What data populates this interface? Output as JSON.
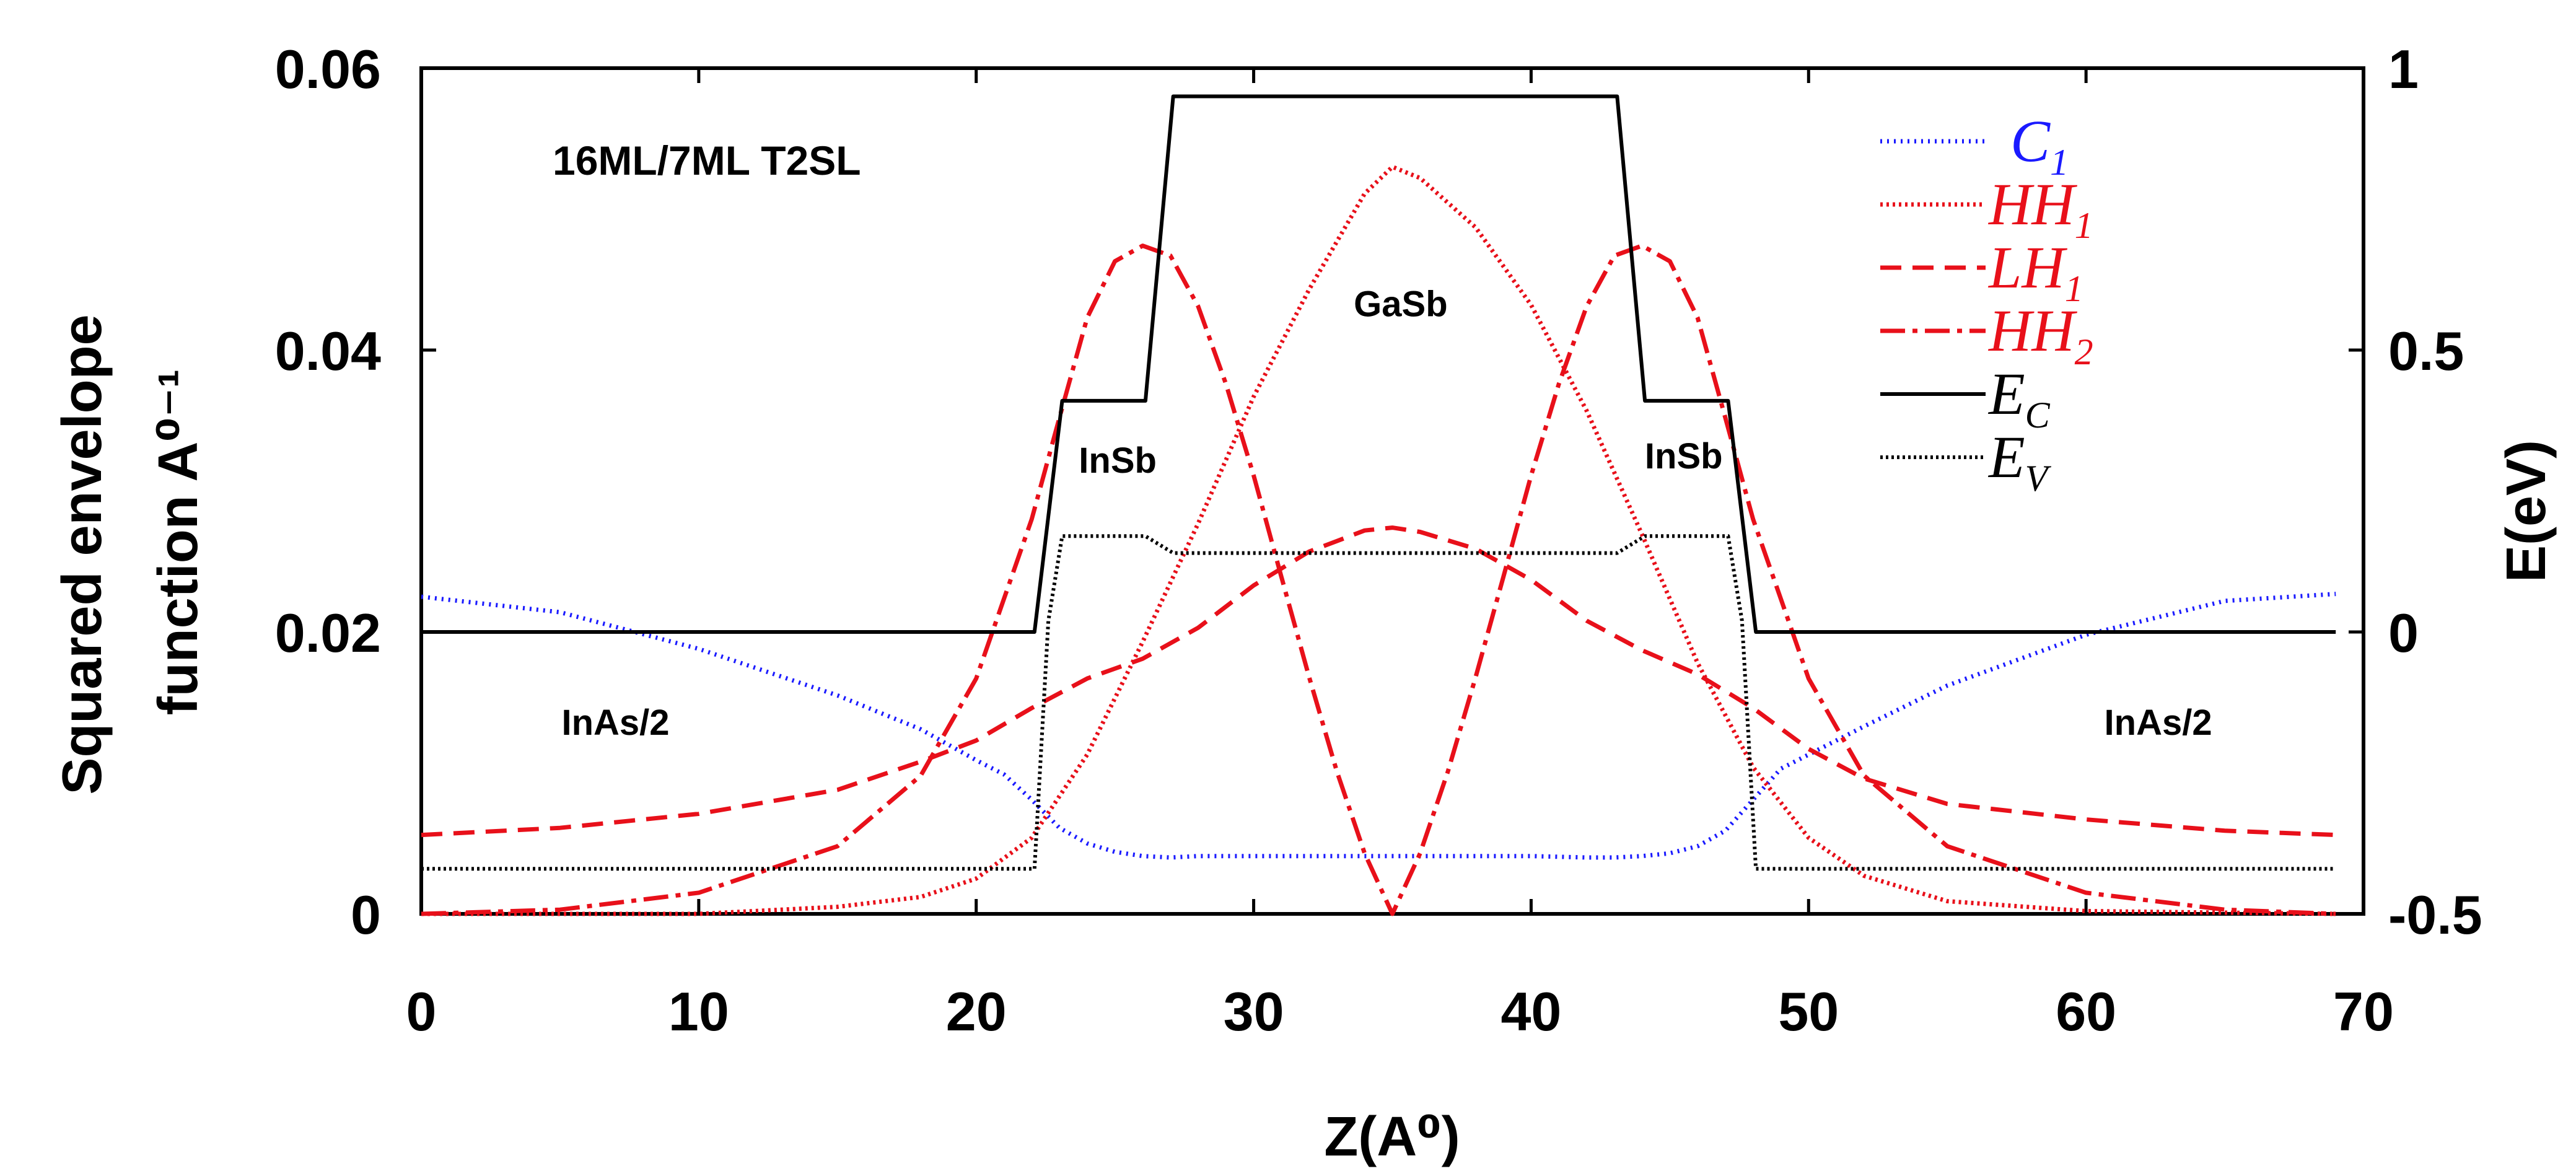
{
  "chart_data": {
    "type": "line",
    "title": "16ML/7ML T2SL",
    "xlabel": "Z(A⁰)",
    "ylabel_left_line1": "Squared envelope",
    "ylabel_left_line2": "function A⁰⁻¹",
    "ylabel_right": "E(eV)",
    "xlim": [
      0,
      70
    ],
    "ylim_left": [
      0,
      0.06
    ],
    "ylim_right": [
      -0.5,
      1.0
    ],
    "xticks": [
      0,
      10,
      20,
      30,
      40,
      50,
      60,
      70
    ],
    "xtick_labels": [
      "0",
      "10",
      "20",
      "30",
      "40",
      "50",
      "60",
      "70"
    ],
    "yticks_left": [
      0,
      0.02,
      0.04,
      0.06
    ],
    "ytick_labels_left": [
      "0",
      "0.02",
      "0.04",
      "0.06"
    ],
    "yticks_right": [
      -0.5,
      0,
      0.5,
      1.0
    ],
    "ytick_labels_right": [
      "-0.5",
      "0",
      "0.5",
      "1"
    ],
    "annotations": [
      {
        "text": "InAs/2",
        "x": 7,
        "y": 0.0127
      },
      {
        "text": "InSb",
        "x": 25.1,
        "y": 0.0313
      },
      {
        "text": "GaSb",
        "x": 35.3,
        "y": 0.0424
      },
      {
        "text": "InSb",
        "x": 45.5,
        "y": 0.0316
      },
      {
        "text": "InAs/2",
        "x": 62.6,
        "y": 0.0127
      }
    ],
    "series": [
      {
        "name": "C1",
        "label_main": "C",
        "label_sub": "1",
        "axis": "left",
        "color": "#1a1aff",
        "dash": "3,8",
        "x": [
          0,
          5,
          10,
          15,
          18,
          20,
          21,
          22,
          23,
          24,
          25,
          26,
          27,
          28,
          30,
          35,
          40,
          42,
          43,
          44,
          45,
          46,
          47,
          48,
          49,
          50,
          52,
          55,
          60,
          65,
          69
        ],
        "y": [
          0.0225,
          0.0214,
          0.0188,
          0.0155,
          0.0131,
          0.0109,
          0.0099,
          0.0081,
          0.0061,
          0.005,
          0.0044,
          0.0041,
          0.004,
          0.0041,
          0.0041,
          0.0041,
          0.0041,
          0.004,
          0.004,
          0.0041,
          0.0043,
          0.0048,
          0.0059,
          0.0081,
          0.0103,
          0.0113,
          0.0133,
          0.0162,
          0.0198,
          0.0222,
          0.0227
        ]
      },
      {
        "name": "HH1",
        "label_main": "HH",
        "label_sub": "1",
        "axis": "left",
        "color": "#e8101a",
        "dash": "4,6",
        "x": [
          0,
          10,
          15,
          18,
          20,
          22,
          24,
          26,
          28,
          30,
          32,
          34,
          35,
          36,
          38,
          40,
          42,
          44,
          46,
          48,
          50,
          52,
          55,
          60,
          69
        ],
        "y": [
          0.0,
          0.0,
          0.0005,
          0.0012,
          0.0025,
          0.0054,
          0.0113,
          0.0193,
          0.0277,
          0.0367,
          0.0443,
          0.0511,
          0.053,
          0.0522,
          0.0487,
          0.0432,
          0.0357,
          0.0269,
          0.0178,
          0.0104,
          0.0054,
          0.0027,
          0.0009,
          0.0002,
          0.0
        ]
      },
      {
        "name": "LH1",
        "label_main": "LH",
        "label_sub": "1",
        "axis": "left",
        "color": "#e8101a",
        "dash": "34,18",
        "x": [
          0,
          5,
          10,
          15,
          18,
          20,
          22,
          24,
          26,
          28,
          30,
          32,
          34,
          35,
          36,
          38,
          40,
          42,
          44,
          46,
          48,
          50,
          52,
          55,
          60,
          65,
          69
        ],
        "y": [
          0.0056,
          0.0061,
          0.0071,
          0.0088,
          0.0108,
          0.0123,
          0.0146,
          0.0167,
          0.0181,
          0.0203,
          0.0233,
          0.0257,
          0.0272,
          0.0274,
          0.0271,
          0.0259,
          0.0237,
          0.0208,
          0.0187,
          0.017,
          0.0146,
          0.0117,
          0.0096,
          0.0078,
          0.0067,
          0.0059,
          0.0056
        ]
      },
      {
        "name": "HH2",
        "label_main": "HH",
        "label_sub": "2",
        "axis": "left",
        "color": "#e8101a",
        "dash": "40,12,8,12",
        "x": [
          0,
          5,
          10,
          15,
          18,
          20,
          22,
          23,
          24,
          25,
          26,
          27,
          28,
          29,
          30,
          31,
          32,
          33,
          34,
          35,
          36,
          37,
          38,
          39,
          40,
          41,
          42,
          43,
          44,
          45,
          46,
          47,
          48,
          50,
          52,
          55,
          60,
          65,
          69
        ],
        "y": [
          0.0,
          0.0003,
          0.0015,
          0.0048,
          0.0098,
          0.0167,
          0.028,
          0.0352,
          0.0423,
          0.0463,
          0.0474,
          0.0467,
          0.0431,
          0.0376,
          0.0311,
          0.0239,
          0.0168,
          0.0101,
          0.0043,
          0.0,
          0.0043,
          0.0101,
          0.0168,
          0.0239,
          0.0311,
          0.0376,
          0.0431,
          0.0467,
          0.0474,
          0.0463,
          0.0423,
          0.0352,
          0.028,
          0.0167,
          0.0098,
          0.0048,
          0.0015,
          0.0003,
          0.0
        ]
      },
      {
        "name": "EC",
        "label_main": "E",
        "label_sub": "C",
        "axis": "right",
        "color": "#000000",
        "dash": "",
        "x": [
          0,
          22.1,
          23.1,
          26.1,
          27.1,
          43.1,
          44.1,
          47.1,
          48.1,
          69
        ],
        "y": [
          0.0,
          0.0,
          0.41,
          0.41,
          0.95,
          0.95,
          0.41,
          0.41,
          0.0,
          0.0
        ]
      },
      {
        "name": "EV",
        "label_main": "E",
        "label_sub": "V",
        "axis": "right",
        "color": "#000000",
        "dash": "4,5",
        "x": [
          0,
          22.1,
          22.6,
          23.1,
          26.1,
          27.1,
          43.1,
          44.1,
          47.1,
          47.6,
          48.1,
          69
        ],
        "y": [
          -0.42,
          -0.42,
          0.02,
          0.17,
          0.17,
          0.14,
          0.14,
          0.17,
          0.17,
          0.02,
          -0.42,
          -0.42
        ]
      }
    ]
  }
}
